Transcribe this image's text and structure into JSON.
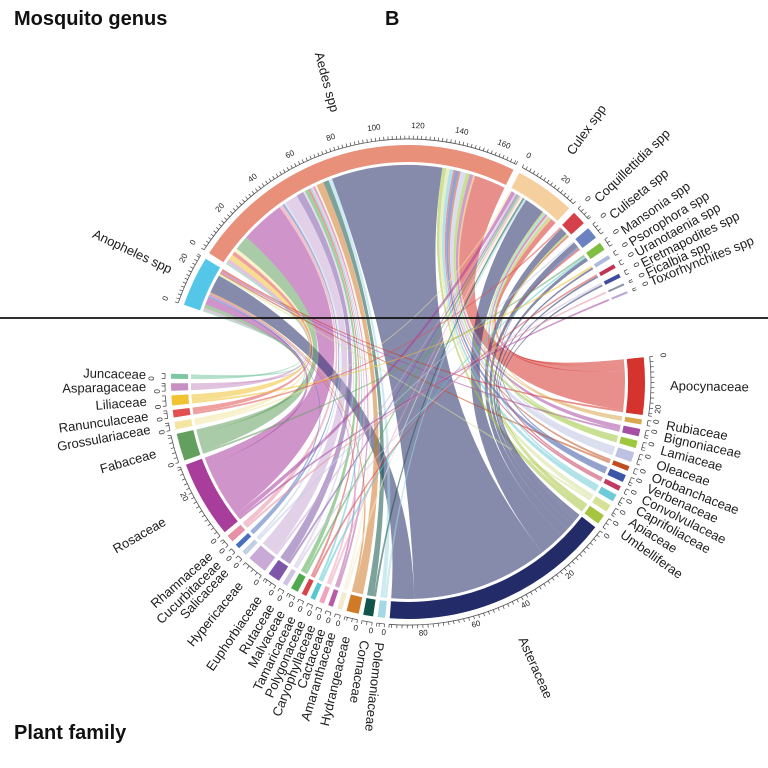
{
  "titles": {
    "top_left": "Mosquito genus",
    "panel": "B",
    "bottom_left": "Plant family"
  },
  "chart_data": {
    "type": "chord",
    "description": "Chord diagram linking mosquito genera (top half) to visited plant families (bottom half); ribbons colored by plant family, axes in number of records, minor ticks every 2, labels every 20",
    "top_group_label": "Mosquito genus",
    "bottom_group_label": "Plant family",
    "axis": {
      "minor_tick_step": 2,
      "label_step": 20
    },
    "mosquitoes": [
      {
        "name": "Anopheles spp",
        "color": "#54C6E8"
      },
      {
        "name": "Aedes spp",
        "color": "#E8907A"
      },
      {
        "name": "Culex spp",
        "color": "#F6CF9E"
      },
      {
        "name": "Coquillettidia spp",
        "color": "#D6404A"
      },
      {
        "name": "Culiseta spp",
        "color": "#6B81C2"
      },
      {
        "name": "Mansonia spp",
        "color": "#7FBE41"
      },
      {
        "name": "Psorophora spp",
        "color": "#ACBBDA"
      },
      {
        "name": "Uranotaenia spp",
        "color": "#C23455"
      },
      {
        "name": "Eretmapodites spp",
        "color": "#3D4C9E"
      },
      {
        "name": "Ficalbia spp",
        "color": "#8B93A8"
      },
      {
        "name": "Toxorhynchites spp",
        "color": "#BBA6D6"
      }
    ],
    "plants": [
      {
        "name": "Apocynaceae",
        "color": "#D5332D"
      },
      {
        "name": "Rubiaceae",
        "color": "#D9A84E"
      },
      {
        "name": "Bignoniaceae",
        "color": "#A74FA4"
      },
      {
        "name": "Lamiaceae",
        "color": "#9DC73C"
      },
      {
        "name": "Oleaceae",
        "color": "#BDC2E2"
      },
      {
        "name": "Orobanchaceae",
        "color": "#BF4E1F"
      },
      {
        "name": "Verbenaceae",
        "color": "#3C55A5"
      },
      {
        "name": "Convolvulaceae",
        "color": "#C23A5E"
      },
      {
        "name": "Caprifoliaceae",
        "color": "#6FCBD8"
      },
      {
        "name": "Apiaceae",
        "color": "#D6E096"
      },
      {
        "name": "Umbelliferae",
        "color": "#A6C43F"
      },
      {
        "name": "Asteraceae",
        "color": "#232C68"
      },
      {
        "name": "Polemoniaceae",
        "color": "#A3D8E4"
      },
      {
        "name": "Cornaceae",
        "color": "#125449"
      },
      {
        "name": "Hydrangeaceae",
        "color": "#D07A28"
      },
      {
        "name": "Amaranthaceae",
        "color": "#F2ECCE"
      },
      {
        "name": "Cactaceae",
        "color": "#B75CA7"
      },
      {
        "name": "Caryophyllaceae",
        "color": "#EFA3BE"
      },
      {
        "name": "Polygonaceae",
        "color": "#59C7D2"
      },
      {
        "name": "Tamaricaceae",
        "color": "#D64545"
      },
      {
        "name": "Malvaceae",
        "color": "#51A94F"
      },
      {
        "name": "Rutaceae",
        "color": "#CFC3E4"
      },
      {
        "name": "Euphorbiaceae",
        "color": "#7E57A8"
      },
      {
        "name": "Hypericaceae",
        "color": "#C9A9D6"
      },
      {
        "name": "Salicaceae",
        "color": "#C3CFE2"
      },
      {
        "name": "Cucurbitaceae",
        "color": "#4A6FBC"
      },
      {
        "name": "Rhamnaceae",
        "color": "#E890A6"
      },
      {
        "name": "Rosaceae",
        "color": "#A83D9C"
      },
      {
        "name": "Fabaceae",
        "color": "#63A05F"
      },
      {
        "name": "Grossulariaceae",
        "color": "#F3E6A0"
      },
      {
        "name": "Ranunculaceae",
        "color": "#E05050"
      },
      {
        "name": "Liliaceae",
        "color": "#F1C232"
      },
      {
        "name": "Asparagaceae",
        "color": "#C88FC4"
      },
      {
        "name": "Juncaceae",
        "color": "#7CC7A2"
      }
    ],
    "links": [
      [
        "Aedes spp",
        "Apocynaceae",
        17
      ],
      [
        "Culex spp",
        "Apocynaceae",
        3
      ],
      [
        "Anopheles spp",
        "Apocynaceae",
        1
      ],
      [
        "Coquillettidia spp",
        "Apocynaceae",
        1
      ],
      [
        "Culiseta spp",
        "Apocynaceae",
        1
      ],
      [
        "Aedes spp",
        "Rubiaceae",
        1
      ],
      [
        "Culex spp",
        "Rubiaceae",
        1
      ],
      [
        "Aedes spp",
        "Bignoniaceae",
        2
      ],
      [
        "Anopheles spp",
        "Bignoniaceae",
        1
      ],
      [
        "Aedes spp",
        "Lamiaceae",
        2
      ],
      [
        "Culex spp",
        "Lamiaceae",
        1
      ],
      [
        "Aedes spp",
        "Oleaceae",
        3
      ],
      [
        "Culex spp",
        "Oleaceae",
        1
      ],
      [
        "Aedes spp",
        "Orobanchaceae",
        1
      ],
      [
        "Anopheles spp",
        "Orobanchaceae",
        1
      ],
      [
        "Aedes spp",
        "Verbenaceae",
        2
      ],
      [
        "Culiseta spp",
        "Verbenaceae",
        1
      ],
      [
        "Aedes spp",
        "Convolvulaceae",
        1
      ],
      [
        "Culex spp",
        "Convolvulaceae",
        1
      ],
      [
        "Aedes spp",
        "Caprifoliaceae",
        2
      ],
      [
        "Culex spp",
        "Caprifoliaceae",
        1
      ],
      [
        "Aedes spp",
        "Apiaceae",
        2
      ],
      [
        "Anopheles spp",
        "Apiaceae",
        1
      ],
      [
        "Aedes spp",
        "Umbelliferae",
        2
      ],
      [
        "Culex spp",
        "Umbelliferae",
        1
      ],
      [
        "Coquillettidia spp",
        "Umbelliferae",
        1
      ],
      [
        "Aedes spp",
        "Asteraceae",
        60
      ],
      [
        "Culex spp",
        "Asteraceae",
        11
      ],
      [
        "Anopheles spp",
        "Asteraceae",
        10
      ],
      [
        "Coquillettidia spp",
        "Asteraceae",
        4
      ],
      [
        "Culiseta spp",
        "Asteraceae",
        3
      ],
      [
        "Mansonia spp",
        "Asteraceae",
        2
      ],
      [
        "Psorophora spp",
        "Asteraceae",
        1
      ],
      [
        "Uranotaenia spp",
        "Asteraceae",
        1
      ],
      [
        "Eretmapodites spp",
        "Asteraceae",
        1
      ],
      [
        "Aedes spp",
        "Polemoniaceae",
        2
      ],
      [
        "Culex spp",
        "Polemoniaceae",
        1
      ],
      [
        "Aedes spp",
        "Cornaceae",
        3
      ],
      [
        "Culex spp",
        "Cornaceae",
        1
      ],
      [
        "Aedes spp",
        "Hydrangeaceae",
        4
      ],
      [
        "Anopheles spp",
        "Hydrangeaceae",
        1
      ],
      [
        "Aedes spp",
        "Amaranthaceae",
        1
      ],
      [
        "Culex spp",
        "Amaranthaceae",
        1
      ],
      [
        "Aedes spp",
        "Cactaceae",
        1
      ],
      [
        "Anopheles spp",
        "Cactaceae",
        1
      ],
      [
        "Aedes spp",
        "Caryophyllaceae",
        1
      ],
      [
        "Culex spp",
        "Caryophyllaceae",
        1
      ],
      [
        "Aedes spp",
        "Polygonaceae",
        1
      ],
      [
        "Mansonia spp",
        "Polygonaceae",
        1
      ],
      [
        "Aedes spp",
        "Tamaricaceae",
        1
      ],
      [
        "Uranotaenia spp",
        "Tamaricaceae",
        1
      ],
      [
        "Aedes spp",
        "Malvaceae",
        2
      ],
      [
        "Culex spp",
        "Malvaceae",
        1
      ],
      [
        "Aedes spp",
        "Rutaceae",
        1
      ],
      [
        "Eretmapodites spp",
        "Rutaceae",
        1
      ],
      [
        "Aedes spp",
        "Euphorbiaceae",
        4
      ],
      [
        "Culex spp",
        "Euphorbiaceae",
        1
      ],
      [
        "Aedes spp",
        "Hypericaceae",
        7
      ],
      [
        "Culex spp",
        "Hypericaceae",
        1
      ],
      [
        "Aedes spp",
        "Salicaceae",
        1
      ],
      [
        "Culiseta spp",
        "Salicaceae",
        1
      ],
      [
        "Aedes spp",
        "Cucurbitaceae",
        1
      ],
      [
        "Anopheles spp",
        "Cucurbitaceae",
        1
      ],
      [
        "Aedes spp",
        "Rhamnaceae",
        2
      ],
      [
        "Ficalbia spp",
        "Rhamnaceae",
        1
      ],
      [
        "Aedes spp",
        "Rosaceae",
        24
      ],
      [
        "Anopheles spp",
        "Rosaceae",
        4
      ],
      [
        "Culex spp",
        "Rosaceae",
        2
      ],
      [
        "Toxorhynchites spp",
        "Rosaceae",
        1
      ],
      [
        "Aedes spp",
        "Fabaceae",
        8
      ],
      [
        "Anopheles spp",
        "Fabaceae",
        2
      ],
      [
        "Mansonia spp",
        "Fabaceae",
        1
      ],
      [
        "Aedes spp",
        "Grossulariaceae",
        2
      ],
      [
        "Culex spp",
        "Grossulariaceae",
        1
      ],
      [
        "Aedes spp",
        "Ranunculaceae",
        2
      ],
      [
        "Coquillettidia spp",
        "Ranunculaceae",
        1
      ],
      [
        "Aedes spp",
        "Liliaceae",
        3
      ],
      [
        "Psorophora spp",
        "Liliaceae",
        1
      ],
      [
        "Aedes spp",
        "Asparagaceae",
        2
      ],
      [
        "Anopheles spp",
        "Asparagaceae",
        1
      ],
      [
        "Aedes spp",
        "Juncaceae",
        1
      ],
      [
        "Anopheles spp",
        "Juncaceae",
        1
      ]
    ]
  }
}
